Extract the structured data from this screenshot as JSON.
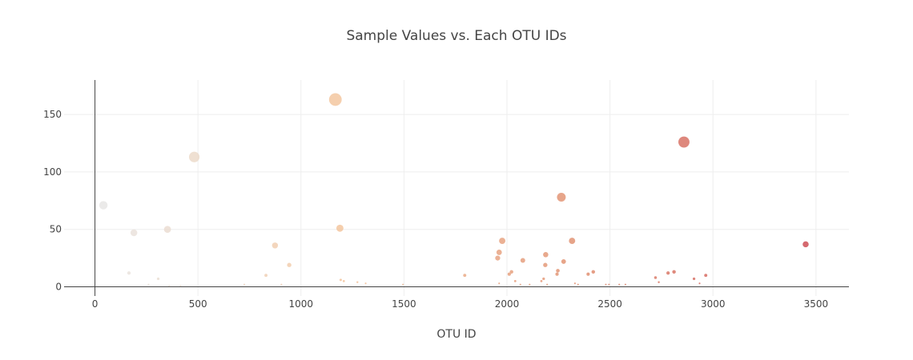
{
  "chart_data": {
    "type": "scatter",
    "title": "Sample Values vs. Each OTU IDs",
    "xlabel": "OTU ID",
    "ylabel": "",
    "xlim": [
      -150,
      3660
    ],
    "ylim": [
      -8,
      180
    ],
    "xticks": [
      0,
      500,
      1000,
      1500,
      2000,
      2500,
      3000,
      3500
    ],
    "yticks": [
      0,
      50,
      100,
      150
    ],
    "grid": true,
    "legend": false,
    "color_scale": [
      "#e6e6e6",
      "#f3c39a",
      "#e08c6a",
      "#c9404a"
    ],
    "points": [
      {
        "x": 41,
        "y": 71
      },
      {
        "x": 165,
        "y": 12
      },
      {
        "x": 189,
        "y": 47
      },
      {
        "x": 307,
        "y": 7
      },
      {
        "x": 352,
        "y": 50
      },
      {
        "x": 482,
        "y": 113
      },
      {
        "x": 830,
        "y": 10
      },
      {
        "x": 874,
        "y": 36
      },
      {
        "x": 943,
        "y": 19
      },
      {
        "x": 1167,
        "y": 163
      },
      {
        "x": 1189,
        "y": 51
      },
      {
        "x": 1193,
        "y": 6
      },
      {
        "x": 1208,
        "y": 5
      },
      {
        "x": 1274,
        "y": 4
      },
      {
        "x": 1314,
        "y": 3
      },
      {
        "x": 1795,
        "y": 10
      },
      {
        "x": 1955,
        "y": 25
      },
      {
        "x": 1962,
        "y": 30
      },
      {
        "x": 1977,
        "y": 40
      },
      {
        "x": 2011,
        "y": 11
      },
      {
        "x": 2022,
        "y": 13
      },
      {
        "x": 2040,
        "y": 5
      },
      {
        "x": 2077,
        "y": 23
      },
      {
        "x": 2167,
        "y": 5
      },
      {
        "x": 2178,
        "y": 7
      },
      {
        "x": 2186,
        "y": 19
      },
      {
        "x": 2188,
        "y": 28
      },
      {
        "x": 2243,
        "y": 11
      },
      {
        "x": 2247,
        "y": 14
      },
      {
        "x": 2264,
        "y": 78
      },
      {
        "x": 2275,
        "y": 22
      },
      {
        "x": 2316,
        "y": 40
      },
      {
        "x": 2394,
        "y": 11
      },
      {
        "x": 2419,
        "y": 13
      },
      {
        "x": 2721,
        "y": 8
      },
      {
        "x": 2737,
        "y": 4
      },
      {
        "x": 2782,
        "y": 12
      },
      {
        "x": 2811,
        "y": 13
      },
      {
        "x": 2859,
        "y": 126
      },
      {
        "x": 2908,
        "y": 7
      },
      {
        "x": 2965,
        "y": 10
      },
      {
        "x": 3450,
        "y": 37
      },
      {
        "x": 260,
        "y": 2
      },
      {
        "x": 360,
        "y": 1
      },
      {
        "x": 415,
        "y": 1
      },
      {
        "x": 725,
        "y": 2
      },
      {
        "x": 905,
        "y": 2
      },
      {
        "x": 1495,
        "y": 2
      },
      {
        "x": 1962,
        "y": 3
      },
      {
        "x": 2065,
        "y": 2
      },
      {
        "x": 2110,
        "y": 2
      },
      {
        "x": 2195,
        "y": 2
      },
      {
        "x": 2330,
        "y": 3
      },
      {
        "x": 2345,
        "y": 2
      },
      {
        "x": 2480,
        "y": 2
      },
      {
        "x": 2495,
        "y": 2
      },
      {
        "x": 2545,
        "y": 2
      },
      {
        "x": 2575,
        "y": 2
      },
      {
        "x": 2935,
        "y": 3
      }
    ]
  }
}
